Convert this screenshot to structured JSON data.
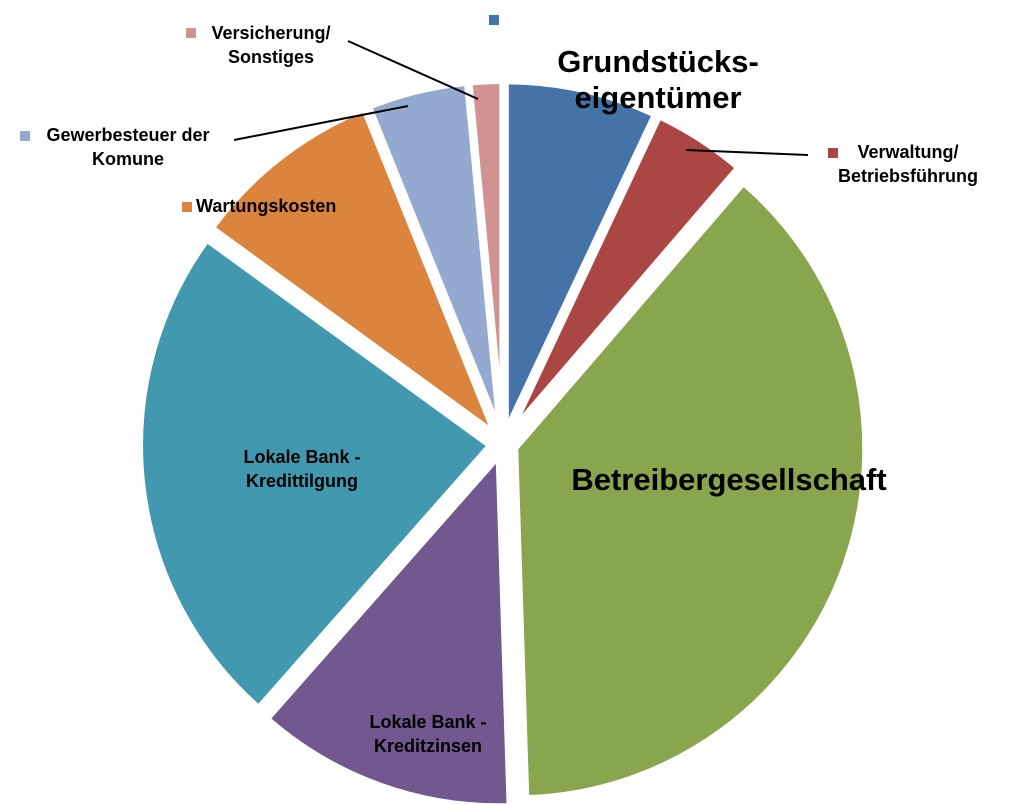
{
  "colors": {
    "background": "#ffffff",
    "text": "#000000",
    "leader_line": "#000000"
  },
  "chart_data": {
    "type": "pie",
    "title": "",
    "exploded": true,
    "start_angle_deg": 0,
    "direction": "clockwise",
    "legend": "none",
    "data_labels": "category names",
    "slices": [
      {
        "label_lines": [
          "Grundstücks-",
          "eigentümer"
        ],
        "value": 7.0,
        "color": "#4572A7",
        "label_style": "large"
      },
      {
        "label_lines": [
          "Verwaltung/",
          "Betriebsführung"
        ],
        "value": 4.3,
        "color": "#AA4643",
        "label_style": "callout"
      },
      {
        "label_lines": [
          "Betreibergesellschaft"
        ],
        "value": 38.2,
        "color": "#89A54E",
        "label_style": "large"
      },
      {
        "label_lines": [
          "Lokale Bank -",
          "Kreditzinsen"
        ],
        "value": 12.0,
        "color": "#71588F",
        "label_style": "inside"
      },
      {
        "label_lines": [
          "Lokale Bank -",
          "Kredittilgung"
        ],
        "value": 23.5,
        "color": "#4198AF",
        "label_style": "inside"
      },
      {
        "label_lines": [
          "Wartungskosten"
        ],
        "value": 8.9,
        "color": "#DB843D",
        "label_style": "callout"
      },
      {
        "label_lines": [
          "Gewerbesteuer der",
          "Komune"
        ],
        "value": 4.6,
        "color": "#93A9CF",
        "label_style": "callout"
      },
      {
        "label_lines": [
          "Versicherung/",
          "Sonstiges"
        ],
        "value": 1.5,
        "color": "#D19392",
        "label_style": "callout"
      }
    ]
  }
}
